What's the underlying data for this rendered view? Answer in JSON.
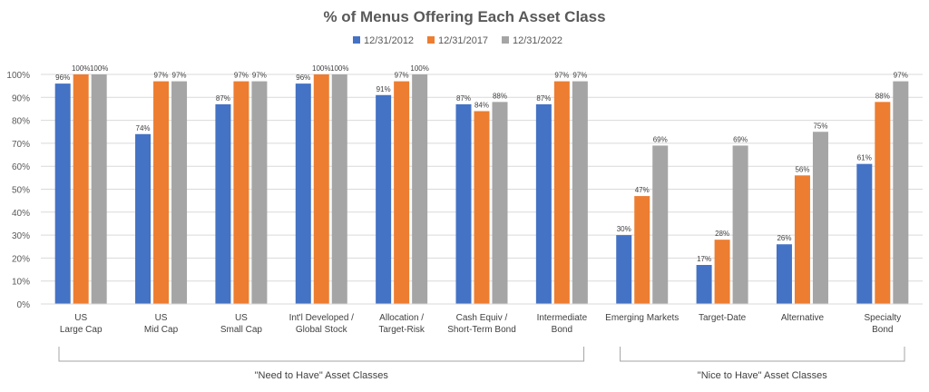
{
  "chart_data": {
    "type": "bar",
    "title": "% of Menus Offering Each Asset Class",
    "categories": [
      [
        "US",
        "Large Cap"
      ],
      [
        "US",
        "Mid Cap"
      ],
      [
        "US",
        "Small Cap"
      ],
      [
        "Int'l Developed /",
        "Global Stock"
      ],
      [
        "Allocation /",
        "Target-Risk"
      ],
      [
        "Cash Equiv /",
        "Short-Term Bond"
      ],
      [
        "Intermediate",
        "Bond"
      ],
      [
        "Emerging Markets"
      ],
      [
        "Target-Date"
      ],
      [
        "Alternative"
      ],
      [
        "Specialty",
        "Bond"
      ]
    ],
    "series": [
      {
        "name": "12/31/2012",
        "color": "#4472C4",
        "values": [
          96,
          74,
          87,
          96,
          91,
          87,
          87,
          30,
          17,
          26,
          61
        ]
      },
      {
        "name": "12/31/2017",
        "color": "#ED7D31",
        "values": [
          100,
          97,
          97,
          100,
          97,
          84,
          97,
          47,
          28,
          56,
          88
        ]
      },
      {
        "name": "12/31/2022",
        "color": "#A5A5A5",
        "values": [
          100,
          97,
          97,
          100,
          100,
          88,
          97,
          69,
          69,
          75,
          97
        ]
      }
    ],
    "ylim": [
      0,
      100
    ],
    "yticks": [
      "0%",
      "10%",
      "20%",
      "30%",
      "40%",
      "50%",
      "60%",
      "70%",
      "80%",
      "90%",
      "100%"
    ],
    "value_suffix": "%",
    "grid": true,
    "legend_position": "top",
    "groups": [
      {
        "label": "\"Need to Have\" Asset Classes",
        "first_category": 0,
        "last_category": 6
      },
      {
        "label": "\"Nice to Have\" Asset Classes",
        "first_category": 7,
        "last_category": 10
      }
    ]
  }
}
